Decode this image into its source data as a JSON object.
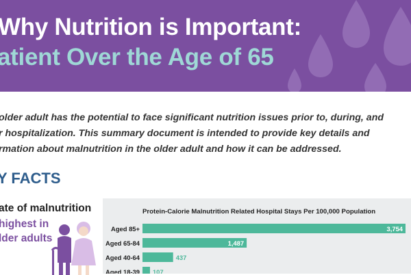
{
  "header": {
    "title_line1": "Why Nutrition is Important:",
    "title_line2": "atient Over the Age of 65",
    "background_color": "#7b4fa0",
    "accent_color": "#9fd8d6"
  },
  "intro": {
    "lines": [
      "older adult has the potential to face significant nutrition issues prior to, during, and",
      "r hospitalization. This summary document is intended to provide key details and",
      "rmation about malnutrition in the older adult and how it can be addressed."
    ]
  },
  "key_facts": {
    "heading": "Y FACTS"
  },
  "callout": {
    "line1": "ate of malnutrition",
    "line2": "highest in",
    "line3": "lder adults",
    "illustration_icon": "elderly-couple-icon"
  },
  "chart_data": {
    "type": "bar",
    "orientation": "horizontal",
    "title": "Protein-Calorie Malnutrition Related Hospital Stays Per 100,000 Population",
    "categories": [
      "Aged 85+",
      "Aged 65-84",
      "Aged 40-64",
      "Aged 18-39"
    ],
    "values": [
      3754,
      1487,
      437,
      107
    ],
    "value_labels": [
      "3,754",
      "1,487",
      "437",
      "107"
    ],
    "xlim": [
      0,
      3754
    ],
    "bar_color": "#4db89a",
    "grid": false
  }
}
